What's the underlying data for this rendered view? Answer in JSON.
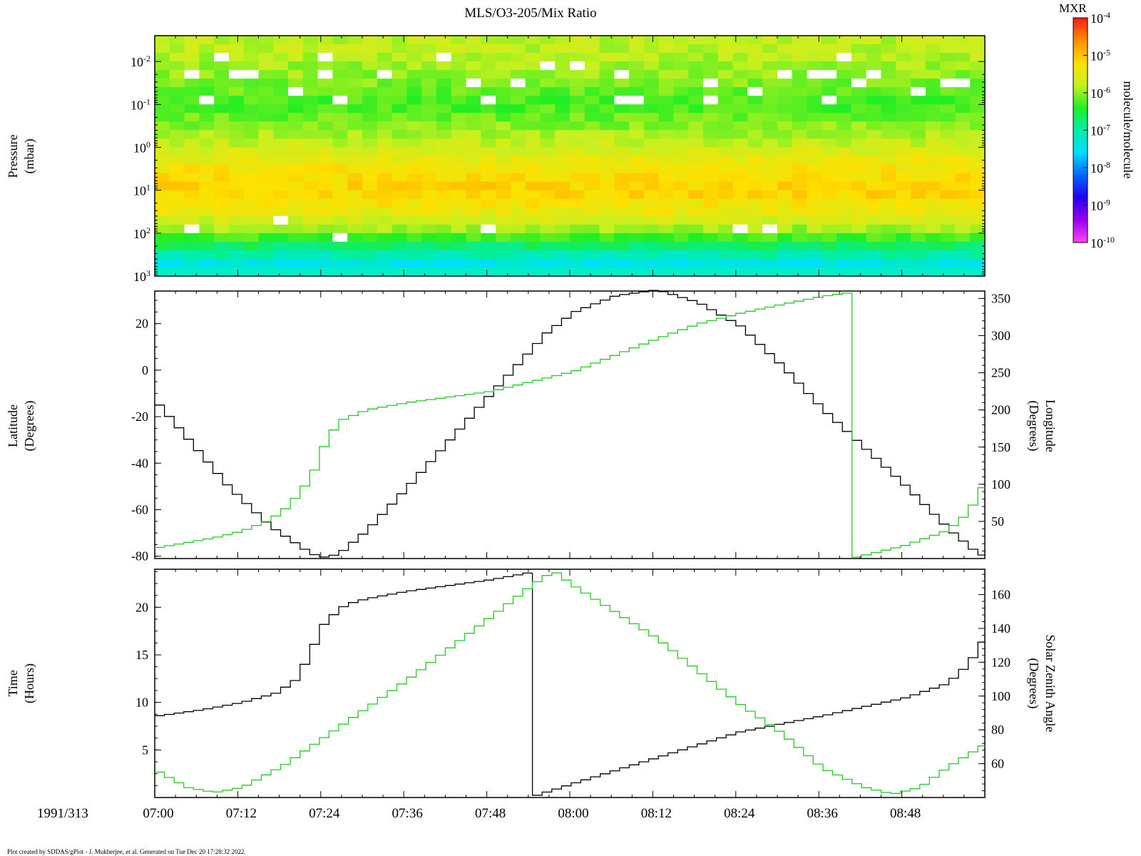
{
  "title": "MLS/O3-205/Mix Ratio",
  "footer": "Plot created by SDDAS/gPlot - J. Mukherjee, et al.  Generated on Tue Dec 20 17:28:32 2022.",
  "date_label": "1991/313",
  "time_ticks": [
    "07:00",
    "07:12",
    "07:24",
    "07:36",
    "07:48",
    "08:00",
    "08:12",
    "08:24",
    "08:36",
    "08:48"
  ],
  "colors": {
    "black_series": "#000000",
    "green_series": "#22cc22"
  },
  "colorbar": {
    "title": "MXR",
    "units": "molecule/molecule",
    "tick_mantissa": "10",
    "tick_exponents": [
      "-4",
      "-5",
      "-6",
      "-7",
      "-8",
      "-9",
      "-10"
    ],
    "stops": [
      "#ff1a1a",
      "#ff8c00",
      "#ffe000",
      "#c8f020",
      "#22ee22",
      "#00eeaa",
      "#00ddff",
      "#0066ff",
      "#2200ee",
      "#9900ee",
      "#ff44ff"
    ]
  },
  "chart_data": [
    {
      "type": "heatmap",
      "panel": "pressure",
      "ylabel": "Pressure",
      "ylabel_units": "(mbar)",
      "y_scale": "log",
      "y_reversed": true,
      "ylim": [
        0.0025,
        1000
      ],
      "y_tick_mantissa": "10",
      "y_tick_exponents": [
        "-2",
        "-1",
        "0",
        "1",
        "2",
        "3"
      ],
      "x_range": [
        "07:00",
        "08:59"
      ],
      "color_scale": "log",
      "value_range": [
        1e-10,
        0.0001
      ],
      "profile": [
        {
          "pressure": 0.005,
          "mix_ratio": 1.5e-06
        },
        {
          "pressure": 0.02,
          "mix_ratio": 1e-06
        },
        {
          "pressure": 0.1,
          "mix_ratio": 5e-07
        },
        {
          "pressure": 0.3,
          "mix_ratio": 9e-07
        },
        {
          "pressure": 1,
          "mix_ratio": 2e-06
        },
        {
          "pressure": 3,
          "mix_ratio": 5e-06
        },
        {
          "pressure": 10,
          "mix_ratio": 8e-06
        },
        {
          "pressure": 30,
          "mix_ratio": 4e-06
        },
        {
          "pressure": 100,
          "mix_ratio": 8e-07
        },
        {
          "pressure": 200,
          "mix_ratio": 2e-07
        },
        {
          "pressure": 500,
          "mix_ratio": 4e-08
        }
      ],
      "missing_data": "white cells"
    },
    {
      "type": "line",
      "panel": "geolocation",
      "step": true,
      "x_range": [
        "07:00",
        "09:00"
      ],
      "left_axis": {
        "label": "Latitude",
        "units": "(Degrees)",
        "range": [
          -81,
          34
        ],
        "ticks": [
          "20",
          "0",
          "-20",
          "-40",
          "-60",
          "-80"
        ]
      },
      "right_axis": {
        "label": "Longitude",
        "units": "(Degrees)",
        "range": [
          0,
          360
        ],
        "ticks": [
          "50",
          "100",
          "150",
          "200",
          "250",
          "300",
          "350"
        ]
      },
      "series": [
        {
          "name": "Latitude",
          "axis": "left",
          "color": "#000000",
          "points": [
            [
              "07:00",
              -15
            ],
            [
              "07:10",
              -50
            ],
            [
              "07:16",
              -67
            ],
            [
              "07:20",
              -75
            ],
            [
              "07:22",
              -79
            ],
            [
              "07:24",
              -80.5
            ],
            [
              "07:26",
              -79
            ],
            [
              "07:30",
              -69
            ],
            [
              "07:36",
              -50
            ],
            [
              "07:48",
              -10
            ],
            [
              "07:56",
              16
            ],
            [
              "08:00",
              25
            ],
            [
              "08:06",
              32
            ],
            [
              "08:12",
              34.5
            ],
            [
              "08:18",
              29
            ],
            [
              "08:24",
              19
            ],
            [
              "08:30",
              2
            ],
            [
              "08:36",
              -17
            ],
            [
              "08:40",
              -28
            ],
            [
              "08:48",
              -50
            ],
            [
              "08:54",
              -68
            ],
            [
              "08:58",
              -78
            ],
            [
              "09:00",
              -81
            ]
          ]
        },
        {
          "name": "Longitude",
          "axis": "right",
          "color": "#22cc22",
          "points": [
            [
              "07:00",
              15
            ],
            [
              "07:08",
              28
            ],
            [
              "07:12",
              37
            ],
            [
              "07:16",
              52
            ],
            [
              "07:18",
              65
            ],
            [
              "07:20",
              85
            ],
            [
              "07:22",
              110
            ],
            [
              "07:24",
              155
            ],
            [
              "07:26",
              185
            ],
            [
              "07:30",
              200
            ],
            [
              "07:36",
              210
            ],
            [
              "07:48",
              225
            ],
            [
              "08:00",
              252
            ],
            [
              "08:06",
              274
            ],
            [
              "08:12",
              296
            ],
            [
              "08:18",
              316
            ],
            [
              "08:24",
              330
            ],
            [
              "08:30",
              342
            ],
            [
              "08:36",
              353
            ],
            [
              "08:40",
              358
            ],
            [
              "08:40",
              0
            ],
            [
              "08:48",
              18
            ],
            [
              "08:54",
              38
            ],
            [
              "08:57",
              62
            ],
            [
              "09:00",
              112
            ]
          ]
        }
      ]
    },
    {
      "type": "line",
      "panel": "time",
      "step": true,
      "x_range": [
        "07:00",
        "09:00"
      ],
      "left_axis": {
        "label": "Time",
        "units": "(Hours)",
        "range": [
          0,
          24
        ],
        "ticks": [
          "20",
          "15",
          "10",
          "5"
        ]
      },
      "right_axis": {
        "label": "Solar Zenith Angle",
        "units": "(Degrees)",
        "range": [
          40,
          175
        ],
        "ticks": [
          "60",
          "80",
          "100",
          "120",
          "140",
          "160"
        ]
      },
      "series": [
        {
          "name": "Time",
          "axis": "left",
          "color": "#000000",
          "points": [
            [
              "07:00",
              8.6
            ],
            [
              "07:06",
              9.2
            ],
            [
              "07:12",
              10.0
            ],
            [
              "07:17",
              11.0
            ],
            [
              "07:20",
              12.5
            ],
            [
              "07:22",
              15.5
            ],
            [
              "07:24",
              18.5
            ],
            [
              "07:27",
              20.3
            ],
            [
              "07:30",
              20.9
            ],
            [
              "07:36",
              21.7
            ],
            [
              "07:48",
              22.9
            ],
            [
              "07:54",
              23.7
            ],
            [
              "07:54",
              0.1
            ],
            [
              "08:00",
              1.5
            ],
            [
              "08:12",
              4.2
            ],
            [
              "08:24",
              6.9
            ],
            [
              "08:36",
              8.6
            ],
            [
              "08:48",
              10.5
            ],
            [
              "08:54",
              12.0
            ],
            [
              "08:57",
              14.0
            ],
            [
              "09:00",
              17.5
            ]
          ]
        },
        {
          "name": "Solar Zenith Angle",
          "axis": "right",
          "color": "#22cc22",
          "points": [
            [
              "07:00",
              55
            ],
            [
              "07:04",
              46
            ],
            [
              "07:08",
              43
            ],
            [
              "07:12",
              46
            ],
            [
              "07:18",
              59
            ],
            [
              "07:24",
              76
            ],
            [
              "07:36",
              110
            ],
            [
              "07:48",
              147
            ],
            [
              "07:54",
              166
            ],
            [
              "07:57",
              174
            ],
            [
              "08:00",
              165
            ],
            [
              "08:12",
              134
            ],
            [
              "08:24",
              95
            ],
            [
              "08:30",
              78
            ],
            [
              "08:36",
              57
            ],
            [
              "08:42",
              46
            ],
            [
              "08:46",
              42
            ],
            [
              "08:50",
              46
            ],
            [
              "08:54",
              58
            ],
            [
              "09:00",
              73
            ]
          ]
        }
      ]
    }
  ]
}
